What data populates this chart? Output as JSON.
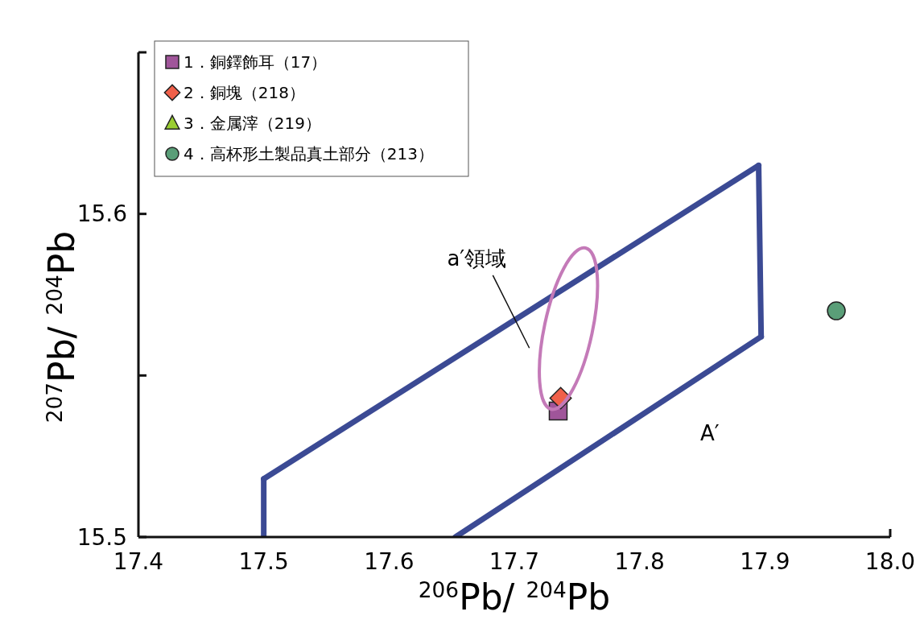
{
  "chart_data": {
    "type": "scatter",
    "xlabel": "$^{206}$Pb/ $^{204}$Pb",
    "ylabel": "$^{207}$Pb/ $^{204}$Pb",
    "xlim": [
      17.4,
      18.0
    ],
    "xticks": [
      17.4,
      17.5,
      17.6,
      17.7,
      17.8,
      17.9,
      {
        "value": 18.0,
        "label": "18.0"
      }
    ],
    "ylim": [
      15.5,
      15.65
    ],
    "yticks": [
      15.5,
      {
        "value": 15.55,
        "label": null
      },
      15.6
    ],
    "grid": false,
    "legend": "top left",
    "series": [
      {
        "name": "1．銅鐸飾耳（17）",
        "color": "#a0559a",
        "marker": "square",
        "x": [
          17.735
        ],
        "values": [
          15.539
        ]
      },
      {
        "name": "2．銅塊（218）",
        "color": "#f0604a",
        "marker": "diamond",
        "x": [
          17.737
        ],
        "values": [
          15.543
        ]
      },
      {
        "name": "3．金属滓（219）",
        "color": "#9acd32",
        "marker": "triangle",
        "x": [
          null
        ],
        "values": [
          null
        ]
      },
      {
        "name": "4．高杯形土製品真土部分（213）",
        "color": "#5a9e78",
        "marker": "circle",
        "x": [
          17.957
        ],
        "values": [
          15.57
        ]
      },
      {
        "type": "line",
        "color": "#3b4a94",
        "x": [
          17.5,
          17.5
        ],
        "values": [
          15.5,
          15.518
        ]
      },
      {
        "type": "line",
        "color": "#3b4a94",
        "x": [
          17.5,
          17.895
        ],
        "values": [
          15.518,
          15.615
        ]
      },
      {
        "type": "line",
        "color": "#3b4a94",
        "x": [
          17.895,
          17.897
        ],
        "values": [
          15.615,
          15.562
        ]
      },
      {
        "type": "line",
        "color": "#3b4a94",
        "x": [
          17.653,
          17.897
        ],
        "values": [
          15.5,
          15.562
        ]
      }
    ],
    "annotations": [
      "a′領域",
      "A′"
    ]
  }
}
